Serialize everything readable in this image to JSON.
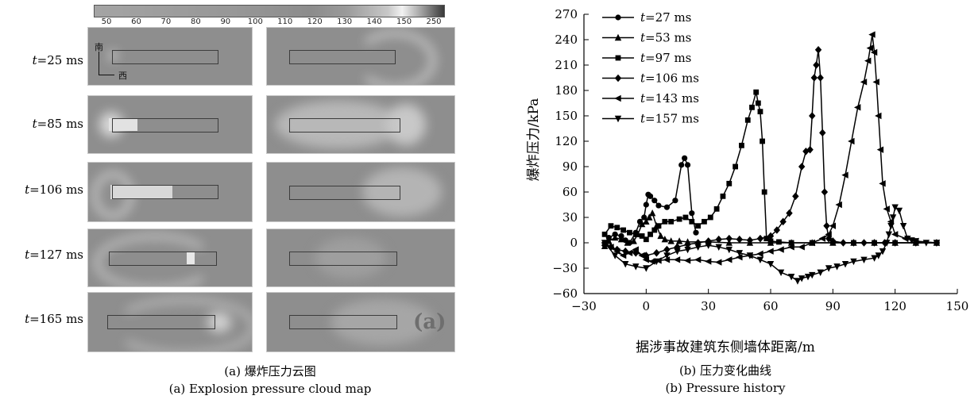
{
  "cloud_map": {
    "colorbar_ticks": [
      "50",
      "60",
      "70",
      "80",
      "90",
      "100",
      "110",
      "120",
      "130",
      "140",
      "150",
      "250"
    ],
    "rows": [
      {
        "t_prefix": "t",
        "t_value": "=25 ms"
      },
      {
        "t_prefix": "t",
        "t_value": "=85 ms"
      },
      {
        "t_prefix": "t",
        "t_value": "=106 ms"
      },
      {
        "t_prefix": "t",
        "t_value": "=127 ms"
      },
      {
        "t_prefix": "t",
        "t_value": "=165 ms"
      }
    ],
    "direction_north": "南",
    "direction_west": "西",
    "panel_letter": "(a)",
    "caption_cn": "(a) 爆炸压力云图",
    "caption_en": "(a) Explosion pressure cloud map"
  },
  "chart_data": {
    "type": "line",
    "xlabel": "据涉事故建筑东侧墙体距离/m",
    "ylabel": "爆炸压力/kPa",
    "xlim": [
      -30,
      150
    ],
    "ylim": [
      -60,
      270
    ],
    "xticks": [
      -30,
      0,
      30,
      60,
      90,
      120,
      150
    ],
    "yticks": [
      -60,
      -30,
      0,
      30,
      60,
      90,
      120,
      150,
      180,
      210,
      240,
      270
    ],
    "legend_position": "top-left",
    "series": [
      {
        "name": "t=27 ms",
        "marker": "circle",
        "x": [
          -20,
          -18,
          -15,
          -12,
          -10,
          -8,
          -5,
          -3,
          -1,
          0,
          1,
          2,
          4,
          6,
          10,
          14,
          17,
          18.5,
          20,
          22,
          24
        ],
        "y": [
          0,
          6,
          10,
          8,
          3,
          0,
          12,
          25,
          30,
          45,
          57,
          55,
          50,
          44,
          42,
          50,
          92,
          100,
          92,
          35,
          12
        ]
      },
      {
        "name": "t=53 ms",
        "marker": "triangle-up",
        "x": [
          -20,
          -18,
          -15,
          -12,
          -9,
          -6,
          -4,
          -2,
          0,
          1.5,
          3,
          5,
          7,
          9,
          12,
          16,
          20,
          30,
          40,
          50,
          60,
          70,
          80,
          90,
          100,
          110,
          120,
          130,
          140
        ],
        "y": [
          -4,
          2,
          6,
          4,
          0,
          2,
          10,
          22,
          25,
          30,
          35,
          20,
          8,
          4,
          2,
          2,
          1,
          1,
          0,
          0,
          0,
          0,
          0,
          0,
          0,
          0,
          0,
          0,
          0
        ]
      },
      {
        "name": "t=97 ms",
        "marker": "square",
        "x": [
          -20,
          -17,
          -14,
          -11,
          -8,
          -5,
          -2,
          0,
          2,
          4,
          6,
          9,
          12,
          16,
          19,
          22,
          25,
          28,
          31,
          34,
          37,
          40,
          43,
          46,
          49,
          51,
          53,
          54,
          55,
          56,
          57,
          58,
          60,
          64,
          70,
          80,
          90,
          100,
          110,
          120,
          130,
          140
        ],
        "y": [
          10,
          20,
          18,
          15,
          12,
          10,
          8,
          4,
          10,
          15,
          20,
          25,
          25,
          28,
          30,
          25,
          20,
          25,
          30,
          40,
          55,
          70,
          90,
          115,
          145,
          160,
          178,
          165,
          155,
          120,
          60,
          5,
          2,
          1,
          0,
          0,
          0,
          0,
          0,
          0,
          0,
          0
        ]
      },
      {
        "name": "t=106 ms",
        "marker": "diamond",
        "x": [
          -20,
          -17,
          -14,
          -10,
          -5,
          0,
          5,
          10,
          15,
          20,
          25,
          30,
          35,
          40,
          45,
          50,
          55,
          60,
          63,
          66,
          69,
          72,
          75,
          77,
          79,
          80,
          81,
          82,
          83,
          84,
          85,
          86,
          87,
          88,
          90,
          95,
          100,
          105,
          110,
          115,
          120,
          130,
          140
        ],
        "y": [
          -3,
          -5,
          -8,
          -10,
          -12,
          -15,
          -12,
          -8,
          -5,
          -2,
          0,
          2,
          4,
          5,
          4,
          3,
          5,
          8,
          15,
          25,
          35,
          55,
          90,
          108,
          110,
          150,
          195,
          210,
          228,
          195,
          130,
          60,
          20,
          5,
          2,
          0,
          0,
          0,
          0,
          0,
          0,
          0,
          0
        ]
      },
      {
        "name": "t=143 ms",
        "marker": "triangle-left",
        "x": [
          -20,
          -17,
          -14,
          -11,
          -8,
          -5,
          -2,
          0,
          3,
          6,
          10,
          15,
          20,
          25,
          30,
          35,
          40,
          45,
          50,
          55,
          60,
          65,
          70,
          75,
          80,
          85,
          88,
          90,
          93,
          96,
          99,
          102,
          105,
          107,
          108,
          109,
          110,
          111,
          112,
          113,
          114,
          116,
          118,
          120,
          125,
          130,
          140
        ],
        "y": [
          0,
          -5,
          -10,
          -15,
          -12,
          -8,
          -15,
          -20,
          -22,
          -21,
          -20,
          -20,
          -21,
          -20,
          -22,
          -23,
          -20,
          -17,
          -15,
          -13,
          -10,
          -8,
          -5,
          -5,
          0,
          5,
          10,
          20,
          45,
          80,
          120,
          160,
          190,
          215,
          230,
          246,
          225,
          190,
          150,
          110,
          70,
          40,
          25,
          10,
          5,
          2,
          0
        ]
      },
      {
        "name": "t=157 ms",
        "marker": "triangle-down",
        "x": [
          -20,
          -15,
          -10,
          -5,
          0,
          5,
          10,
          15,
          20,
          25,
          30,
          35,
          40,
          45,
          50,
          55,
          60,
          65,
          70,
          73,
          75,
          78,
          80,
          84,
          88,
          92,
          96,
          100,
          105,
          110,
          112,
          114,
          116,
          117,
          118,
          119,
          120,
          122,
          124,
          126,
          128,
          130,
          135,
          140
        ],
        "y": [
          0,
          -15,
          -25,
          -28,
          -30,
          -22,
          -15,
          -10,
          -8,
          -5,
          -3,
          -5,
          -8,
          -12,
          -15,
          -20,
          -25,
          -35,
          -40,
          -45,
          -42,
          -40,
          -38,
          -35,
          -30,
          -28,
          -25,
          -22,
          -20,
          -18,
          -15,
          -10,
          0,
          10,
          20,
          30,
          42,
          38,
          20,
          5,
          3,
          2,
          0,
          0
        ]
      }
    ],
    "caption_cn": "(b) 压力变化曲线",
    "caption_en": "(b) Pressure history"
  }
}
